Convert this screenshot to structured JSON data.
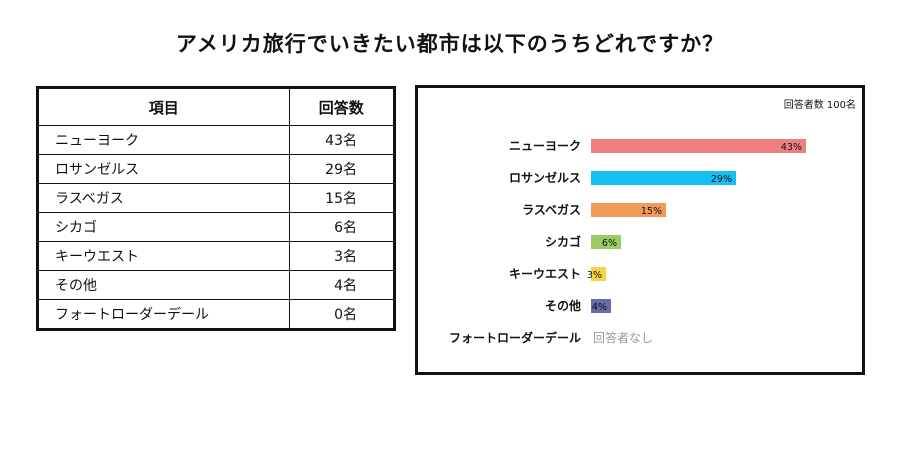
{
  "title": "アメリカ旅行でいきたい都市は以下のうちどれですか？",
  "table": {
    "headers": [
      "項目",
      "回答数"
    ],
    "rows": [
      {
        "item": "ニューヨーク",
        "count": "43名"
      },
      {
        "item": "ロサンゼルス",
        "count": "29名"
      },
      {
        "item": "ラスベガス",
        "count": "15名"
      },
      {
        "item": "シカゴ",
        "count": "6名"
      },
      {
        "item": "キーウエスト",
        "count": "3名"
      },
      {
        "item": "その他",
        "count": "4名"
      },
      {
        "item": "フォートローダーデール",
        "count": "0名"
      }
    ]
  },
  "chart_note": "回答者数 100名",
  "chart_data": {
    "type": "bar",
    "orientation": "horizontal",
    "categories": [
      "ニューヨーク",
      "ロサンゼルス",
      "ラスベガス",
      "シカゴ",
      "キーウエスト",
      "その他",
      "フォートローダーデール"
    ],
    "values": [
      43,
      29,
      15,
      6,
      3,
      4,
      0
    ],
    "value_labels": [
      "43%",
      "29%",
      "15%",
      "6%",
      "3%",
      "4%",
      "回答者なし"
    ],
    "colors": [
      "#ef7f7f",
      "#16bff0",
      "#f4995a",
      "#99cc66",
      "#f7d43f",
      "#6b6bab",
      "#999999"
    ],
    "xlim": [
      0,
      100
    ],
    "grid": false
  }
}
